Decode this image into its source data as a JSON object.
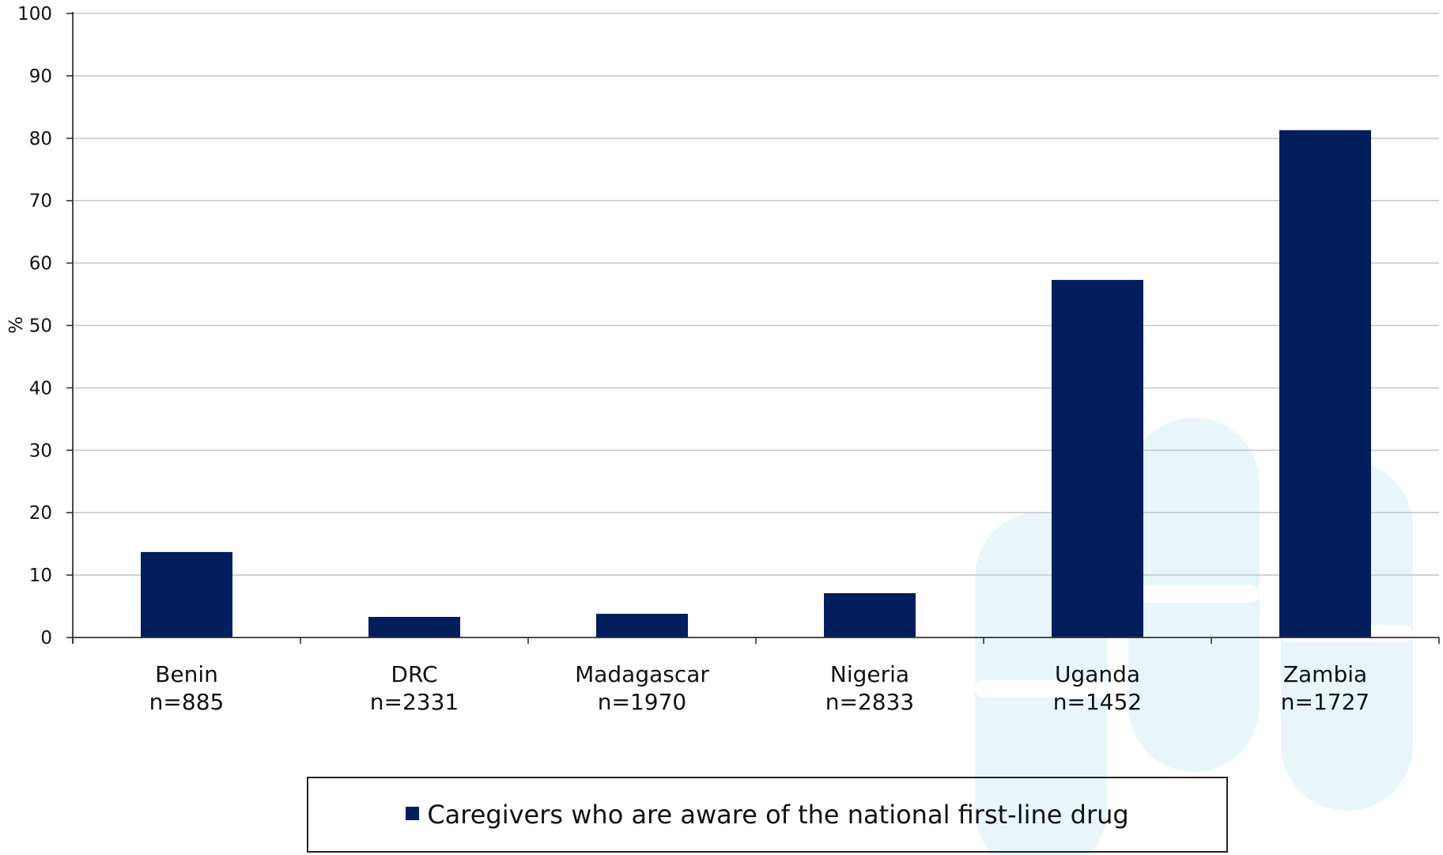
{
  "chart_data": {
    "type": "bar",
    "categories": [
      "Benin\nn=885",
      "DRC\nn=2331",
      "Madagascar\nn=1970",
      "Nigeria\nn=2833",
      "Uganda\nn=1452",
      "Zambia\nn=1727"
    ],
    "category_lines": [
      [
        "Benin",
        "n=885"
      ],
      [
        "DRC",
        "n=2331"
      ],
      [
        "Madagascar",
        "n=1970"
      ],
      [
        "Nigeria",
        "n=2833"
      ],
      [
        "Uganda",
        "n=1452"
      ],
      [
        "Zambia",
        "n=1727"
      ]
    ],
    "series": [
      {
        "name": "Caregivers who are aware of the national first-line drug",
        "values": [
          13.7,
          3.3,
          3.8,
          7.1,
          57.3,
          81.3
        ],
        "color": "#031e5c"
      }
    ],
    "ylabel": "%",
    "xlabel": "",
    "ylim": [
      0,
      100
    ],
    "yticks": [
      0,
      10,
      20,
      30,
      40,
      50,
      60,
      70,
      80,
      90,
      100
    ],
    "grid": true,
    "legend_position": "bottom",
    "colors": {
      "bar": "#031e5c",
      "grid": "#c8c8c8",
      "axis": "#333333",
      "watermark": "#e8f6fa"
    }
  },
  "legend": {
    "label": "Caregivers who are aware of the national first-line drug"
  }
}
